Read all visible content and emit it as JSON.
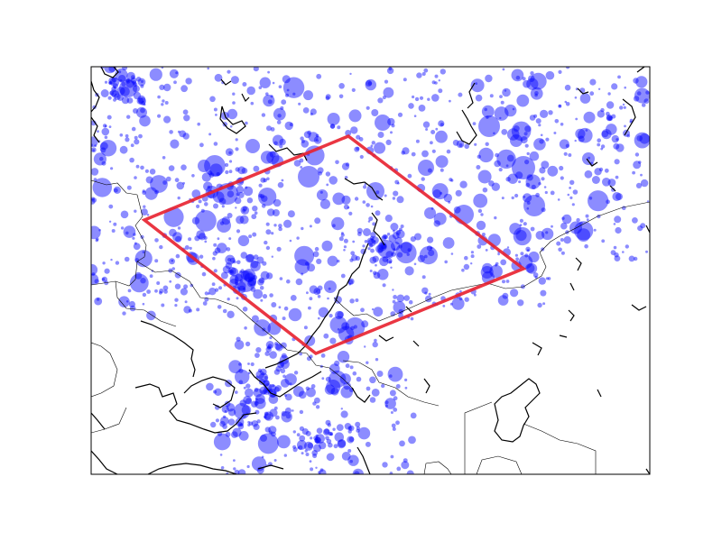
{
  "map": {
    "marker_color": "#0000ff",
    "marker_opacity": 0.45,
    "polygon_color": "#e8202e",
    "coastline_color": "#000000",
    "border_color": "#000000",
    "background_color": "#ffffff",
    "frame_color": "#000000"
  },
  "markers": {
    "seed": 20240517,
    "background_count": 1150,
    "cluster_count": 240,
    "large_sites": [
      {
        "name": "northwest-cluster",
        "size": "large"
      },
      {
        "name": "west-central-cluster",
        "size": "large"
      },
      {
        "name": "east-large",
        "size": "large"
      },
      {
        "name": "south-cluster",
        "size": "medium"
      }
    ]
  }
}
